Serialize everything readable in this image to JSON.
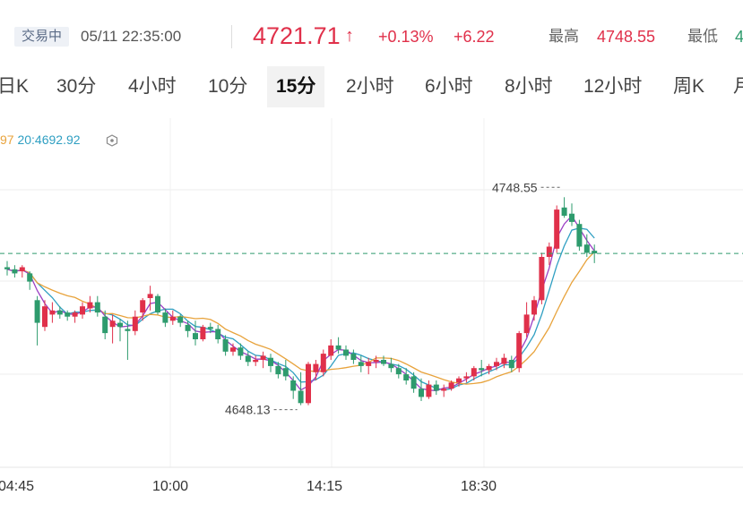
{
  "header": {
    "status": "交易中",
    "datetime": "05/11 22:35:00",
    "price": "4721.71",
    "arrow": "↑",
    "change_pct": "+0.13%",
    "change_abs": "+6.22",
    "high_label": "最高",
    "high_value": "4748.55",
    "low_label": "最低",
    "low_value": "4"
  },
  "tabs": [
    "日K",
    "30分",
    "4小时",
    "10分",
    "15分",
    "2小时",
    "6小时",
    "8小时",
    "12小时",
    "周K",
    "月"
  ],
  "active_tab": "15分",
  "ma_legend": {
    "partial": "97",
    "ma20": "20:4692.92",
    "settings_icon": "hexagon-settings-icon"
  },
  "colors": {
    "up": "#e0304a",
    "down": "#2e9b6d",
    "ma_short": "#9b3fc4",
    "ma_mid": "#e8a33c",
    "ma_long": "#2f9fc2",
    "last_price_line": "#2e9b6d"
  },
  "chart_data": {
    "type": "candlestick",
    "x_ticks": [
      "04:45",
      "10:00",
      "14:15",
      "18:30"
    ],
    "annotations": {
      "high_label": "4748.55",
      "low_label": "4648.13"
    },
    "last_price": 4721.71,
    "candles": [
      {
        "o": 4715,
        "h": 4718,
        "l": 4711,
        "c": 4714
      },
      {
        "o": 4714,
        "h": 4716,
        "l": 4710,
        "c": 4712
      },
      {
        "o": 4713,
        "h": 4716,
        "l": 4710,
        "c": 4715
      },
      {
        "o": 4712,
        "h": 4713,
        "l": 4704,
        "c": 4708
      },
      {
        "o": 4699,
        "h": 4701,
        "l": 4677,
        "c": 4688
      },
      {
        "o": 4686,
        "h": 4699,
        "l": 4684,
        "c": 4696
      },
      {
        "o": 4692,
        "h": 4698,
        "l": 4688,
        "c": 4694
      },
      {
        "o": 4694,
        "h": 4696,
        "l": 4690,
        "c": 4692
      },
      {
        "o": 4693,
        "h": 4694,
        "l": 4689,
        "c": 4691
      },
      {
        "o": 4691,
        "h": 4694,
        "l": 4688,
        "c": 4693
      },
      {
        "o": 4692,
        "h": 4698,
        "l": 4690,
        "c": 4696
      },
      {
        "o": 4695,
        "h": 4701,
        "l": 4693,
        "c": 4698
      },
      {
        "o": 4698,
        "h": 4701,
        "l": 4691,
        "c": 4693
      },
      {
        "o": 4691,
        "h": 4694,
        "l": 4680,
        "c": 4683
      },
      {
        "o": 4686,
        "h": 4692,
        "l": 4678,
        "c": 4689
      },
      {
        "o": 4688,
        "h": 4690,
        "l": 4679,
        "c": 4686
      },
      {
        "o": 4685,
        "h": 4689,
        "l": 4670,
        "c": 4684
      },
      {
        "o": 4684,
        "h": 4694,
        "l": 4682,
        "c": 4691
      },
      {
        "o": 4693,
        "h": 4700,
        "l": 4689,
        "c": 4699
      },
      {
        "o": 4700,
        "h": 4706,
        "l": 4694,
        "c": 4702
      },
      {
        "o": 4701,
        "h": 4702,
        "l": 4692,
        "c": 4693
      },
      {
        "o": 4693,
        "h": 4695,
        "l": 4686,
        "c": 4688
      },
      {
        "o": 4689,
        "h": 4694,
        "l": 4687,
        "c": 4691
      },
      {
        "o": 4691,
        "h": 4692,
        "l": 4686,
        "c": 4688
      },
      {
        "o": 4687,
        "h": 4689,
        "l": 4681,
        "c": 4684
      },
      {
        "o": 4683,
        "h": 4689,
        "l": 4677,
        "c": 4680
      },
      {
        "o": 4680,
        "h": 4687,
        "l": 4679,
        "c": 4686
      },
      {
        "o": 4686,
        "h": 4688,
        "l": 4683,
        "c": 4685
      },
      {
        "o": 4685,
        "h": 4687,
        "l": 4678,
        "c": 4680
      },
      {
        "o": 4680,
        "h": 4682,
        "l": 4672,
        "c": 4674
      },
      {
        "o": 4674,
        "h": 4678,
        "l": 4672,
        "c": 4676
      },
      {
        "o": 4676,
        "h": 4678,
        "l": 4670,
        "c": 4672
      },
      {
        "o": 4672,
        "h": 4674,
        "l": 4667,
        "c": 4669
      },
      {
        "o": 4669,
        "h": 4672,
        "l": 4667,
        "c": 4670
      },
      {
        "o": 4670,
        "h": 4674,
        "l": 4666,
        "c": 4672
      },
      {
        "o": 4671,
        "h": 4673,
        "l": 4664,
        "c": 4667
      },
      {
        "o": 4667,
        "h": 4669,
        "l": 4661,
        "c": 4663
      },
      {
        "o": 4666,
        "h": 4670,
        "l": 4660,
        "c": 4662
      },
      {
        "o": 4660,
        "h": 4662,
        "l": 4651,
        "c": 4655
      },
      {
        "o": 4655,
        "h": 4664,
        "l": 4648,
        "c": 4649
      },
      {
        "o": 4649,
        "h": 4669,
        "l": 4648,
        "c": 4668
      },
      {
        "o": 4664,
        "h": 4670,
        "l": 4660,
        "c": 4668
      },
      {
        "o": 4664,
        "h": 4675,
        "l": 4662,
        "c": 4673
      },
      {
        "o": 4672,
        "h": 4680,
        "l": 4670,
        "c": 4677
      },
      {
        "o": 4677,
        "h": 4681,
        "l": 4673,
        "c": 4675
      },
      {
        "o": 4675,
        "h": 4677,
        "l": 4670,
        "c": 4672
      },
      {
        "o": 4673,
        "h": 4675,
        "l": 4668,
        "c": 4670
      },
      {
        "o": 4669,
        "h": 4672,
        "l": 4664,
        "c": 4667
      },
      {
        "o": 4667,
        "h": 4671,
        "l": 4663,
        "c": 4669
      },
      {
        "o": 4669,
        "h": 4672,
        "l": 4666,
        "c": 4670
      },
      {
        "o": 4670,
        "h": 4672,
        "l": 4667,
        "c": 4668
      },
      {
        "o": 4668,
        "h": 4671,
        "l": 4664,
        "c": 4666
      },
      {
        "o": 4666,
        "h": 4668,
        "l": 4661,
        "c": 4663
      },
      {
        "o": 4663,
        "h": 4666,
        "l": 4658,
        "c": 4660
      },
      {
        "o": 4662,
        "h": 4664,
        "l": 4654,
        "c": 4656
      },
      {
        "o": 4656,
        "h": 4661,
        "l": 4650,
        "c": 4652
      },
      {
        "o": 4652,
        "h": 4660,
        "l": 4651,
        "c": 4658
      },
      {
        "o": 4658,
        "h": 4660,
        "l": 4653,
        "c": 4655
      },
      {
        "o": 4655,
        "h": 4658,
        "l": 4652,
        "c": 4656
      },
      {
        "o": 4656,
        "h": 4660,
        "l": 4655,
        "c": 4659
      },
      {
        "o": 4659,
        "h": 4662,
        "l": 4657,
        "c": 4661
      },
      {
        "o": 4661,
        "h": 4664,
        "l": 4659,
        "c": 4662
      },
      {
        "o": 4662,
        "h": 4667,
        "l": 4660,
        "c": 4666
      },
      {
        "o": 4666,
        "h": 4670,
        "l": 4662,
        "c": 4665
      },
      {
        "o": 4665,
        "h": 4668,
        "l": 4663,
        "c": 4667
      },
      {
        "o": 4667,
        "h": 4671,
        "l": 4665,
        "c": 4669
      },
      {
        "o": 4668,
        "h": 4673,
        "l": 4666,
        "c": 4671
      },
      {
        "o": 4670,
        "h": 4672,
        "l": 4664,
        "c": 4666
      },
      {
        "o": 4666,
        "h": 4684,
        "l": 4664,
        "c": 4683
      },
      {
        "o": 4683,
        "h": 4698,
        "l": 4681,
        "c": 4692
      },
      {
        "o": 4692,
        "h": 4701,
        "l": 4689,
        "c": 4699
      },
      {
        "o": 4699,
        "h": 4722,
        "l": 4697,
        "c": 4720
      },
      {
        "o": 4720,
        "h": 4727,
        "l": 4716,
        "c": 4725
      },
      {
        "o": 4724,
        "h": 4745,
        "l": 4722,
        "c": 4743
      },
      {
        "o": 4744,
        "h": 4749,
        "l": 4739,
        "c": 4740
      },
      {
        "o": 4741,
        "h": 4746,
        "l": 4735,
        "c": 4737
      },
      {
        "o": 4736,
        "h": 4738,
        "l": 4723,
        "c": 4725
      },
      {
        "o": 4726,
        "h": 4731,
        "l": 4720,
        "c": 4722
      },
      {
        "o": 4723,
        "h": 4726,
        "l": 4717,
        "c": 4721.71
      }
    ]
  }
}
